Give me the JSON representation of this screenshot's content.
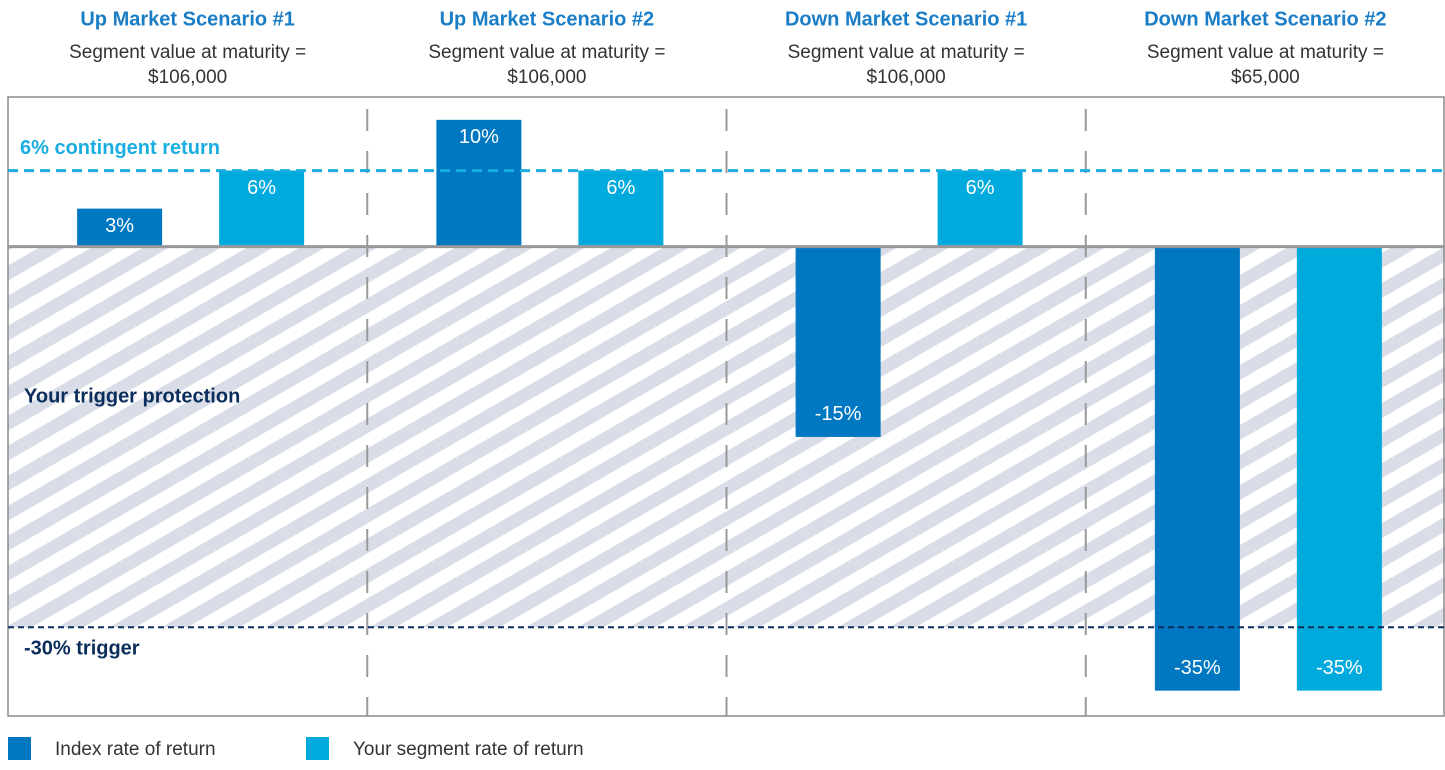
{
  "chart_data": {
    "type": "bar",
    "categories": [
      "Up Market Scenario #1",
      "Up Market Scenario #2",
      "Down Market Scenario #1",
      "Down Market Scenario #2"
    ],
    "subtitles": [
      [
        "Segment value at maturity =",
        "$106,000"
      ],
      [
        "Segment value at maturity =",
        "$106,000"
      ],
      [
        "Segment value at maturity =",
        "$106,000"
      ],
      [
        "Segment value at maturity =",
        "$65,000"
      ]
    ],
    "series": [
      {
        "name": "Index rate of return",
        "color": "#0077c1",
        "values": [
          3,
          10,
          -15,
          -35
        ],
        "value_labels": [
          "3%",
          "10%",
          "-15%",
          "-35%"
        ]
      },
      {
        "name": "Your segment rate of return",
        "color": "#00aadd",
        "values": [
          6,
          6,
          6,
          -35
        ],
        "value_labels": [
          "6%",
          "6%",
          "6%",
          "-35%"
        ]
      }
    ],
    "ylim": [
      -37,
      11.8
    ],
    "contingent_return": {
      "value": 6,
      "label": "6% contingent return"
    },
    "trigger": {
      "value": -30,
      "label": "-30% trigger"
    },
    "protection_label": "Your trigger protection"
  }
}
